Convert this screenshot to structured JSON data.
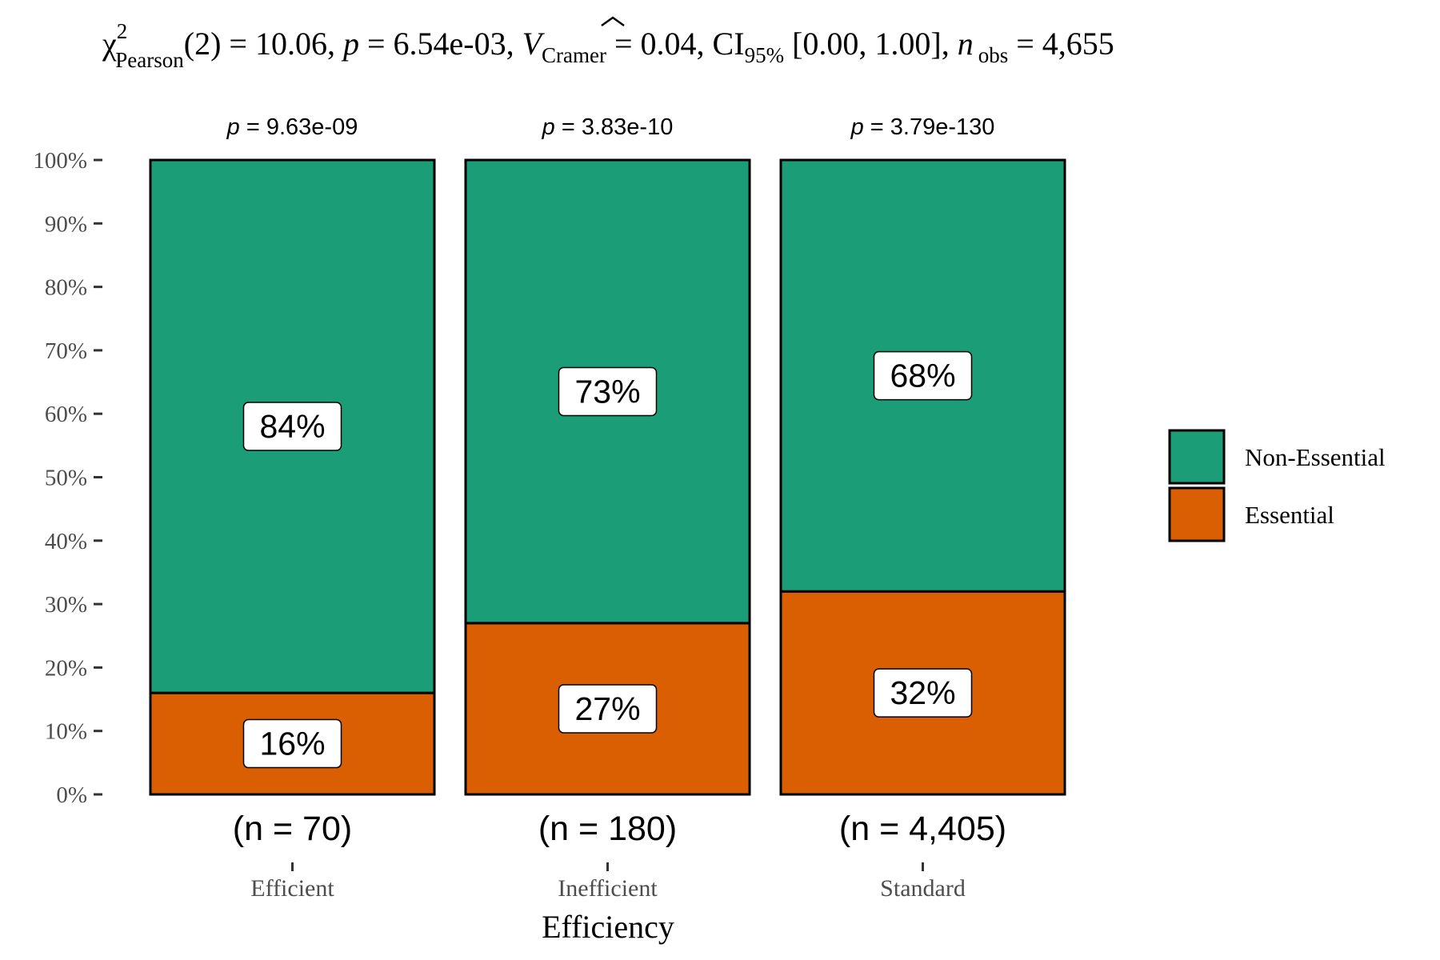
{
  "chart_data": {
    "type": "bar",
    "stacked": true,
    "percent": true,
    "subtitle": {
      "chi_symbol": "χ",
      "chi_sup": "2",
      "chi_sub": "Pearson",
      "df": "(2) = 10.06, ",
      "p_symbol": "p",
      "p_value": " = 6.54e-03, ",
      "v_symbol": "V",
      "v_sub": "Cramer",
      "v_value": " = 0.04, CI",
      "ci_sub": "95%",
      "ci_value": " [0.00, 1.00], ",
      "n_symbol": "n",
      "n_sub": "obs",
      "n_value": " = 4,655"
    },
    "xlabel": "Efficiency",
    "ylabel": "",
    "ylim": [
      0,
      100
    ],
    "yticks": [
      "0%",
      "10%",
      "20%",
      "30%",
      "40%",
      "50%",
      "60%",
      "70%",
      "80%",
      "90%",
      "100%"
    ],
    "categories": [
      "Efficient",
      "Inefficient",
      "Standard"
    ],
    "series": [
      {
        "name": "Essential",
        "color": "#D95F02",
        "values": [
          16,
          27,
          32
        ],
        "labels": [
          "16%",
          "27%",
          "32%"
        ]
      },
      {
        "name": "Non-Essential",
        "color": "#1B9E77",
        "values": [
          84,
          73,
          68
        ],
        "labels": [
          "84%",
          "73%",
          "68%"
        ]
      }
    ],
    "counts": [
      "(n = 70)",
      "(n = 180)",
      "(n = 4,405)"
    ],
    "p_labels": [
      {
        "symbol": "p",
        "value": " = 9.63e-09"
      },
      {
        "symbol": "p",
        "value": " = 3.83e-10"
      },
      {
        "symbol": "p",
        "value": " = 3.79e-130"
      }
    ],
    "legend": {
      "position": "right",
      "items": [
        {
          "label": "Non-Essential",
          "color": "#1B9E77"
        },
        {
          "label": "Essential",
          "color": "#D95F02"
        }
      ]
    },
    "grid": false
  }
}
